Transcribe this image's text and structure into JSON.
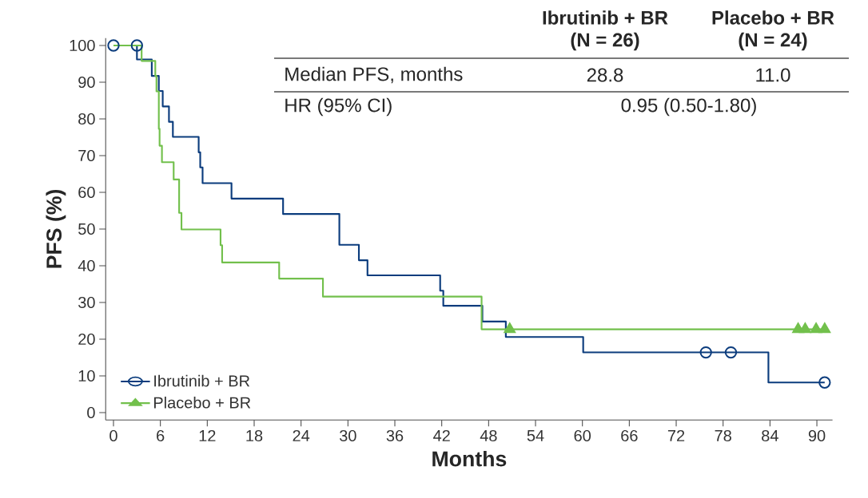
{
  "chart_data": {
    "type": "step",
    "xlabel": "Months",
    "ylabel": "PFS (%)",
    "xlim": [
      -1,
      92
    ],
    "ylim": [
      -2,
      102
    ],
    "xticks": [
      0,
      6,
      12,
      18,
      24,
      30,
      36,
      42,
      48,
      54,
      60,
      66,
      72,
      78,
      84,
      90
    ],
    "yticks": [
      0,
      10,
      20,
      30,
      40,
      50,
      60,
      70,
      80,
      90,
      100
    ],
    "legend": "bottom left",
    "series": [
      {
        "name": "Ibrutinib + BR",
        "color": "#0b3c7d",
        "x": [
          0,
          3.0,
          4.9,
          5.8,
          6.3,
          7.1,
          7.6,
          10.9,
          11.1,
          11.4,
          15.1,
          21.7,
          28.9,
          31.4,
          32.5,
          41.8,
          42.2,
          47.2,
          50.2,
          60.1,
          83.8,
          91.0
        ],
        "values": [
          100,
          96.2,
          91.7,
          87.6,
          83.4,
          79.2,
          75.1,
          70.9,
          66.8,
          62.5,
          58.3,
          54.1,
          45.7,
          41.5,
          37.4,
          33.2,
          29.1,
          24.8,
          20.6,
          16.4,
          8.2,
          8.2
        ]
      },
      {
        "name": "Placebo + BR",
        "color": "#72c04c",
        "x": [
          0,
          3.6,
          5.35,
          5.5,
          5.8,
          5.9,
          6.2,
          7.7,
          8.4,
          8.7,
          13.7,
          13.9,
          21.2,
          26.8,
          47.1,
          91.0
        ],
        "values": [
          100,
          95.8,
          91.7,
          87.5,
          77.3,
          72.7,
          68.2,
          63.5,
          54.4,
          49.9,
          45.6,
          40.9,
          36.5,
          31.6,
          22.7,
          22.7
        ]
      },
      {
        "type": "scatter",
        "color": "#0b3c7d",
        "marker": "circle",
        "x": [
          0,
          3.0,
          75.8,
          79.0,
          91.0
        ],
        "values": [
          100,
          100,
          16.4,
          16.4,
          8.2
        ]
      },
      {
        "type": "scatter",
        "color": "#72c04c",
        "marker": "triangle",
        "x": [
          50.7,
          87.6,
          88.5,
          89.9,
          91.0
        ],
        "values": [
          22.7,
          22.7,
          22.7,
          22.7,
          22.7
        ]
      }
    ],
    "annotations": [
      "Ibrutinib + BR",
      "(N = 26)",
      "Placebo + BR",
      "(N = 24)",
      "Median PFS, months",
      "28.8",
      "11.0",
      "HR (95% CI)",
      "0.95 (0.50-1.80)"
    ]
  }
}
